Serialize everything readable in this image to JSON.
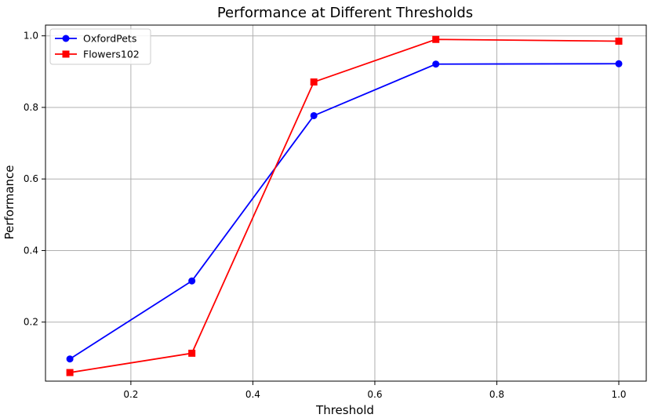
{
  "chart_data": {
    "type": "line",
    "title": "Performance at Different Thresholds",
    "xlabel": "Threshold",
    "ylabel": "Performance",
    "xlim": [
      0.06,
      1.045
    ],
    "ylim": [
      0.035,
      1.03
    ],
    "xticks": [
      0.2,
      0.4,
      0.6,
      0.8,
      1.0
    ],
    "xtick_labels": [
      "0.2",
      "0.4",
      "0.6",
      "0.8",
      "1.0"
    ],
    "yticks": [
      0.2,
      0.4,
      0.6,
      0.8,
      1.0
    ],
    "ytick_labels": [
      "0.2",
      "0.4",
      "0.6",
      "0.8",
      "1.0"
    ],
    "grid": true,
    "legend_position": "top-left",
    "x": [
      0.1,
      0.3,
      0.5,
      0.7,
      1.0
    ],
    "series": [
      {
        "name": "OxfordPets",
        "color": "#0000ff",
        "marker": "circle",
        "values": [
          0.097,
          0.315,
          0.777,
          0.921,
          0.922
        ]
      },
      {
        "name": "Flowers102",
        "color": "#ff0000",
        "marker": "square",
        "values": [
          0.059,
          0.113,
          0.871,
          0.99,
          0.985
        ]
      }
    ]
  }
}
